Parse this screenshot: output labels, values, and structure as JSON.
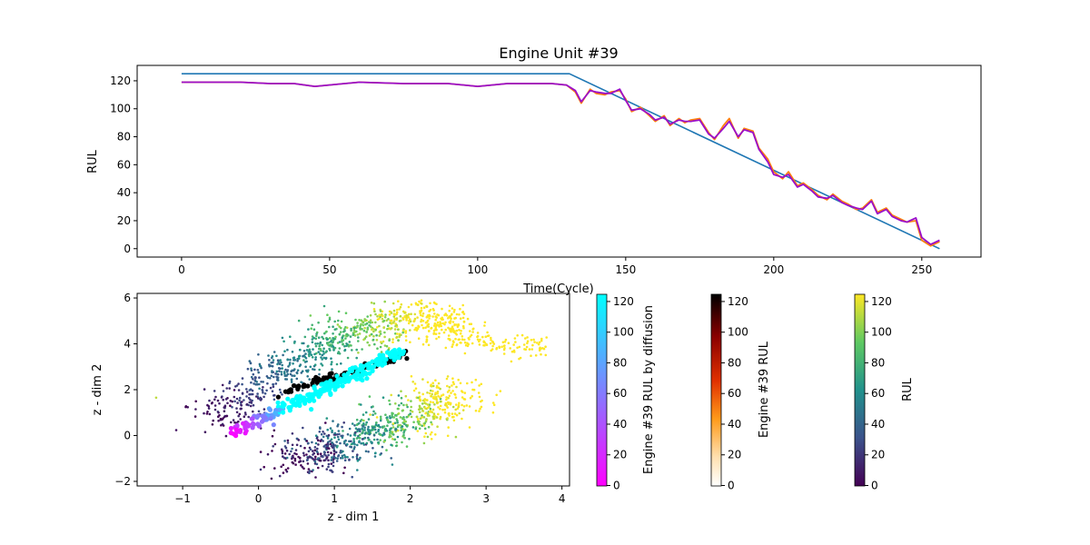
{
  "chart_data": [
    {
      "type": "line",
      "title": "Engine Unit #39",
      "xlabel": "Time(Cycle)",
      "ylabel": "RUL",
      "xlim": [
        -15,
        270
      ],
      "ylim": [
        -6,
        131
      ],
      "xticks": [
        0,
        50,
        100,
        150,
        200,
        250
      ],
      "yticks": [
        0,
        20,
        40,
        60,
        80,
        100,
        120
      ],
      "grid": false,
      "series": [
        {
          "color": "#1f77b4",
          "x": [
            0,
            131,
            256
          ],
          "y": [
            125,
            125,
            0
          ]
        },
        {
          "color": "#ff7f0e",
          "x": [
            0,
            20,
            30,
            38,
            45,
            60,
            75,
            90,
            100,
            110,
            120,
            125,
            130,
            133,
            135,
            138,
            140,
            143,
            145,
            148,
            150,
            152,
            155,
            158,
            160,
            163,
            165,
            168,
            170,
            172,
            175,
            178,
            180,
            183,
            185,
            188,
            190,
            193,
            195,
            198,
            200,
            203,
            205,
            208,
            210,
            213,
            215,
            218,
            220,
            223,
            225,
            228,
            230,
            233,
            235,
            238,
            240,
            243,
            245,
            248,
            250,
            253,
            256
          ],
          "y": [
            119,
            119,
            118,
            118,
            116,
            119,
            118,
            118,
            116,
            118,
            118,
            118,
            117,
            112,
            104,
            114,
            111,
            110,
            112,
            113,
            107,
            98,
            101,
            95,
            91,
            95,
            88,
            93,
            90,
            92,
            93,
            83,
            78,
            88,
            93,
            79,
            86,
            84,
            72,
            64,
            55,
            50,
            55,
            45,
            47,
            42,
            38,
            35,
            39,
            34,
            32,
            28,
            29,
            35,
            26,
            29,
            24,
            21,
            19,
            20,
            6,
            2,
            5
          ]
        },
        {
          "color": "#9a0eca",
          "x": [
            0,
            20,
            30,
            38,
            45,
            60,
            75,
            90,
            100,
            110,
            120,
            125,
            130,
            133,
            135,
            138,
            140,
            143,
            145,
            148,
            150,
            152,
            155,
            158,
            160,
            163,
            165,
            168,
            170,
            172,
            175,
            178,
            180,
            183,
            185,
            188,
            190,
            193,
            195,
            198,
            200,
            203,
            205,
            208,
            210,
            213,
            215,
            218,
            220,
            223,
            225,
            228,
            230,
            233,
            235,
            238,
            240,
            243,
            245,
            248,
            250,
            253,
            256
          ],
          "y": [
            119,
            119,
            118,
            118,
            116,
            119,
            118,
            118,
            116,
            118,
            118,
            118,
            117,
            113,
            105,
            113,
            112,
            111,
            111,
            114,
            106,
            99,
            100,
            96,
            92,
            94,
            89,
            92,
            91,
            91,
            92,
            82,
            79,
            86,
            91,
            80,
            85,
            83,
            71,
            62,
            53,
            51,
            53,
            44,
            46,
            41,
            37,
            36,
            38,
            33,
            31,
            29,
            28,
            34,
            25,
            28,
            23,
            20,
            19,
            22,
            8,
            3,
            6
          ]
        }
      ]
    },
    {
      "type": "scatter",
      "xlabel": "z - dim 1",
      "ylabel": "z - dim 2",
      "xlim": [
        -1.6,
        4.1
      ],
      "ylim": [
        -2.2,
        6.2
      ],
      "xticks": [
        -1,
        0,
        1,
        2,
        3,
        4
      ],
      "yticks": [
        -2,
        0,
        2,
        4,
        6
      ],
      "colorbars": [
        {
          "label": "Engine #39 RUL by diffusion",
          "cmap": "cool",
          "range": [
            0,
            120
          ],
          "ticks": [
            0,
            20,
            40,
            60,
            80,
            100,
            120
          ]
        },
        {
          "label": "Engine #39 RUL",
          "cmap": "gist_heat_r",
          "range": [
            0,
            120
          ],
          "ticks": [
            0,
            20,
            40,
            60,
            80,
            100,
            120
          ]
        },
        {
          "label": "RUL",
          "cmap": "viridis",
          "range": [
            0,
            120
          ],
          "ticks": [
            0,
            20,
            40,
            60,
            80,
            100,
            120
          ]
        }
      ]
    }
  ]
}
